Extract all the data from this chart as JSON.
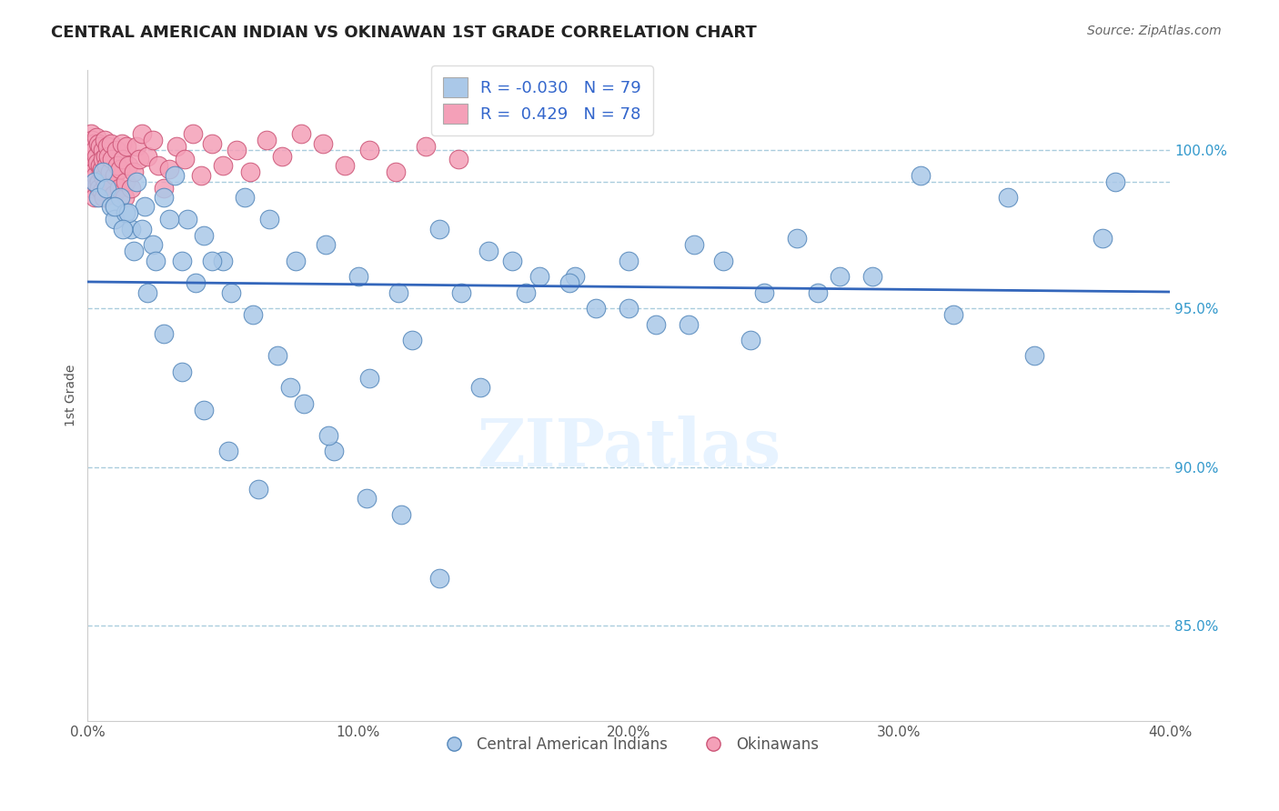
{
  "title": "CENTRAL AMERICAN INDIAN VS OKINAWAN 1ST GRADE CORRELATION CHART",
  "source": "Source: ZipAtlas.com",
  "ylabel": "1st Grade",
  "xlim": [
    0.0,
    40.0
  ],
  "ylim": [
    82.0,
    102.5
  ],
  "yticks": [
    85.0,
    90.0,
    95.0,
    100.0
  ],
  "ytick_labels": [
    "85.0%",
    "90.0%",
    "95.0%",
    "100.0%"
  ],
  "xticks": [
    0,
    10,
    20,
    30,
    40
  ],
  "xtick_labels": [
    "0.0%",
    "10.0%",
    "20.0%",
    "30.0%",
    "40.0%"
  ],
  "blue_R": -0.03,
  "blue_N": 79,
  "pink_R": 0.429,
  "pink_N": 78,
  "blue_face": "#aac8e8",
  "pink_face": "#f4a0b8",
  "blue_edge": "#5588bb",
  "pink_edge": "#cc5577",
  "trend_color": "#3366bb",
  "grid_color": "#aaccdd",
  "legend_blue_box": "#aac8e8",
  "legend_pink_box": "#f4a0b8",
  "blue_x": [
    0.25,
    0.4,
    0.55,
    0.7,
    0.85,
    1.0,
    1.2,
    1.4,
    1.6,
    1.8,
    2.1,
    2.4,
    2.8,
    3.2,
    3.7,
    4.3,
    5.0,
    5.8,
    6.7,
    7.7,
    8.8,
    10.0,
    11.5,
    13.0,
    14.8,
    16.7,
    18.8,
    21.0,
    23.5,
    26.2,
    29.0,
    32.0,
    35.0,
    38.0,
    1.5,
    2.0,
    2.5,
    3.0,
    3.5,
    4.0,
    4.6,
    5.3,
    6.1,
    7.0,
    8.0,
    9.1,
    10.3,
    11.6,
    13.0,
    14.5,
    16.2,
    18.0,
    20.0,
    22.2,
    24.5,
    27.0,
    1.0,
    1.3,
    1.7,
    2.2,
    2.8,
    3.5,
    4.3,
    5.2,
    6.3,
    7.5,
    8.9,
    10.4,
    12.0,
    13.8,
    15.7,
    17.8,
    20.0,
    22.4,
    25.0,
    27.8,
    30.8,
    34.0,
    37.5
  ],
  "blue_y": [
    99.0,
    98.5,
    99.3,
    98.8,
    98.2,
    97.8,
    98.5,
    98.0,
    97.5,
    99.0,
    98.2,
    97.0,
    98.5,
    99.2,
    97.8,
    97.3,
    96.5,
    98.5,
    97.8,
    96.5,
    97.0,
    96.0,
    95.5,
    97.5,
    96.8,
    96.0,
    95.0,
    94.5,
    96.5,
    97.2,
    96.0,
    94.8,
    93.5,
    99.0,
    98.0,
    97.5,
    96.5,
    97.8,
    96.5,
    95.8,
    96.5,
    95.5,
    94.8,
    93.5,
    92.0,
    90.5,
    89.0,
    88.5,
    86.5,
    92.5,
    95.5,
    96.0,
    95.0,
    94.5,
    94.0,
    95.5,
    98.2,
    97.5,
    96.8,
    95.5,
    94.2,
    93.0,
    91.8,
    90.5,
    89.3,
    92.5,
    91.0,
    92.8,
    94.0,
    95.5,
    96.5,
    95.8,
    96.5,
    97.0,
    95.5,
    96.0,
    99.2,
    98.5,
    97.2
  ],
  "pink_x": [
    0.05,
    0.07,
    0.09,
    0.11,
    0.13,
    0.15,
    0.17,
    0.19,
    0.21,
    0.23,
    0.25,
    0.27,
    0.29,
    0.31,
    0.33,
    0.35,
    0.37,
    0.39,
    0.41,
    0.43,
    0.45,
    0.47,
    0.49,
    0.51,
    0.53,
    0.55,
    0.57,
    0.59,
    0.61,
    0.63,
    0.65,
    0.67,
    0.69,
    0.72,
    0.75,
    0.78,
    0.82,
    0.86,
    0.9,
    0.95,
    1.0,
    1.05,
    1.1,
    1.15,
    1.2,
    1.25,
    1.3,
    1.35,
    1.4,
    1.45,
    1.5,
    1.6,
    1.7,
    1.8,
    1.9,
    2.0,
    2.2,
    2.4,
    2.6,
    2.8,
    3.0,
    3.3,
    3.6,
    3.9,
    4.2,
    4.6,
    5.0,
    5.5,
    6.0,
    6.6,
    7.2,
    7.9,
    8.7,
    9.5,
    10.4,
    11.4,
    12.5,
    13.7
  ],
  "pink_y": [
    99.5,
    100.2,
    99.8,
    100.5,
    99.0,
    100.3,
    98.8,
    99.5,
    100.2,
    99.3,
    100.0,
    98.5,
    99.2,
    100.4,
    99.8,
    98.9,
    99.6,
    100.2,
    99.0,
    98.8,
    99.5,
    100.1,
    99.3,
    98.7,
    99.4,
    100.0,
    99.7,
    98.5,
    99.1,
    100.3,
    99.8,
    98.9,
    99.5,
    100.1,
    99.8,
    98.9,
    99.3,
    100.2,
    99.7,
    98.6,
    99.2,
    100.0,
    99.5,
    98.8,
    99.4,
    100.2,
    99.7,
    98.5,
    99.0,
    100.1,
    99.5,
    98.8,
    99.3,
    100.1,
    99.7,
    100.5,
    99.8,
    100.3,
    99.5,
    98.8,
    99.4,
    100.1,
    99.7,
    100.5,
    99.2,
    100.2,
    99.5,
    100.0,
    99.3,
    100.3,
    99.8,
    100.5,
    100.2,
    99.5,
    100.0,
    99.3,
    100.1,
    99.7
  ]
}
